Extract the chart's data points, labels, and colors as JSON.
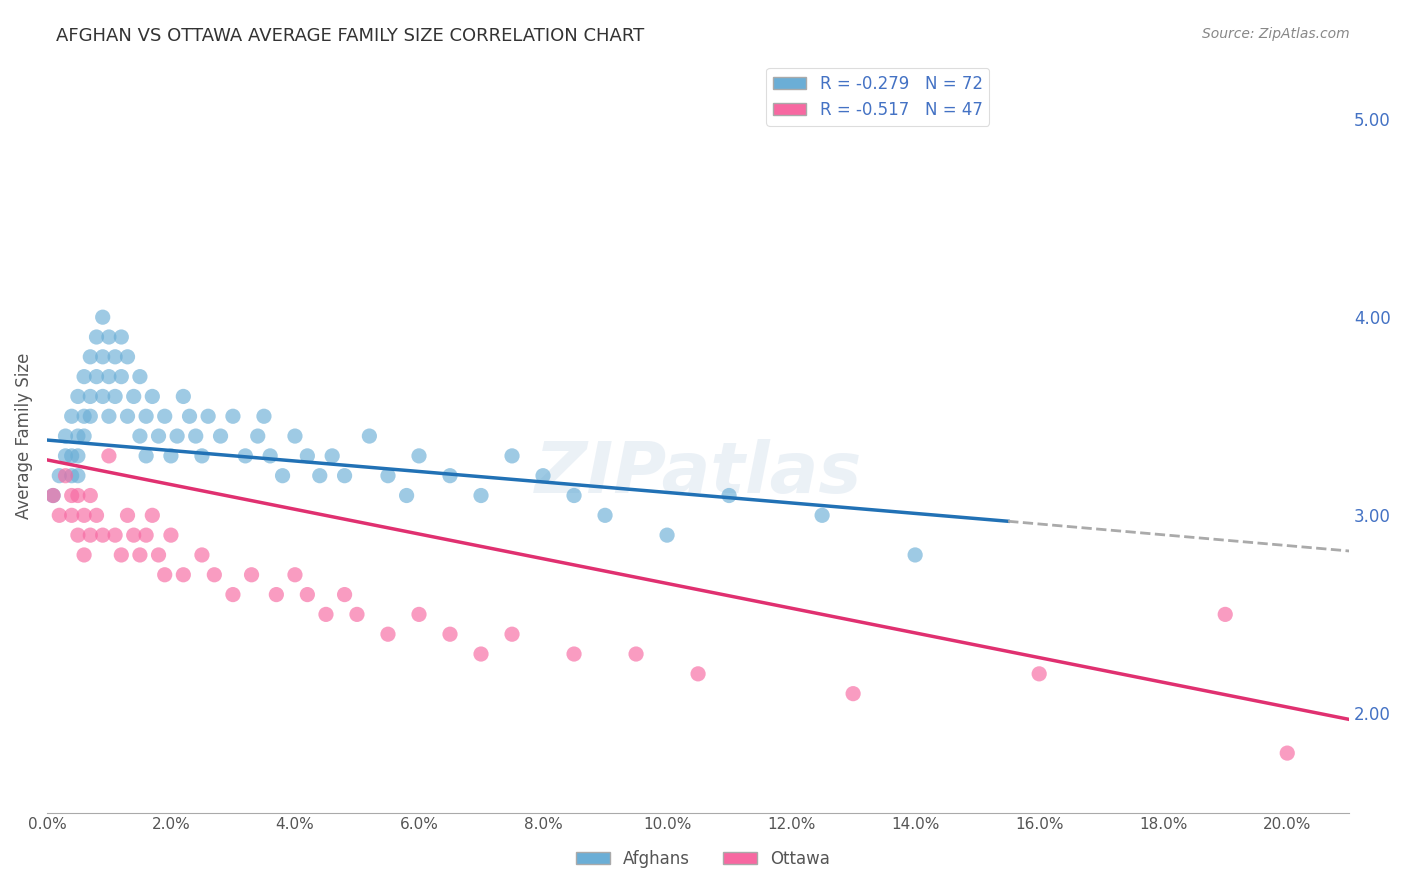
{
  "title": "AFGHAN VS OTTAWA AVERAGE FAMILY SIZE CORRELATION CHART",
  "source": "Source: ZipAtlas.com",
  "ylabel": "Average Family Size",
  "right_yticks": [
    2.0,
    3.0,
    4.0,
    5.0
  ],
  "watermark": "ZIPatlas",
  "legend_entries": [
    {
      "label": "R = -0.279   N = 72",
      "color": "#a8c4e0"
    },
    {
      "label": "R = -0.517   N = 47",
      "color": "#f4a8b8"
    }
  ],
  "afghans_color": "#6baed6",
  "ottawa_color": "#f768a1",
  "afghans_alpha": 0.65,
  "ottawa_alpha": 0.65,
  "blue_line_color": "#2171b5",
  "pink_line_color": "#e03070",
  "dashed_line_color": "#aaaaaa",
  "background_color": "#ffffff",
  "afghans_x": [
    0.001,
    0.002,
    0.003,
    0.003,
    0.004,
    0.004,
    0.004,
    0.005,
    0.005,
    0.005,
    0.005,
    0.006,
    0.006,
    0.006,
    0.007,
    0.007,
    0.007,
    0.008,
    0.008,
    0.009,
    0.009,
    0.009,
    0.01,
    0.01,
    0.01,
    0.011,
    0.011,
    0.012,
    0.012,
    0.013,
    0.013,
    0.014,
    0.015,
    0.015,
    0.016,
    0.016,
    0.017,
    0.018,
    0.019,
    0.02,
    0.021,
    0.022,
    0.023,
    0.024,
    0.025,
    0.026,
    0.028,
    0.03,
    0.032,
    0.034,
    0.035,
    0.036,
    0.038,
    0.04,
    0.042,
    0.044,
    0.046,
    0.048,
    0.052,
    0.055,
    0.058,
    0.06,
    0.065,
    0.07,
    0.075,
    0.08,
    0.085,
    0.09,
    0.1,
    0.11,
    0.125,
    0.14
  ],
  "afghans_y": [
    3.1,
    3.2,
    3.4,
    3.3,
    3.5,
    3.3,
    3.2,
    3.6,
    3.4,
    3.3,
    3.2,
    3.7,
    3.5,
    3.4,
    3.8,
    3.6,
    3.5,
    3.9,
    3.7,
    4.0,
    3.8,
    3.6,
    3.9,
    3.7,
    3.5,
    3.8,
    3.6,
    3.9,
    3.7,
    3.8,
    3.5,
    3.6,
    3.4,
    3.7,
    3.5,
    3.3,
    3.6,
    3.4,
    3.5,
    3.3,
    3.4,
    3.6,
    3.5,
    3.4,
    3.3,
    3.5,
    3.4,
    3.5,
    3.3,
    3.4,
    3.5,
    3.3,
    3.2,
    3.4,
    3.3,
    3.2,
    3.3,
    3.2,
    3.4,
    3.2,
    3.1,
    3.3,
    3.2,
    3.1,
    3.3,
    3.2,
    3.1,
    3.0,
    2.9,
    3.1,
    3.0,
    2.8
  ],
  "ottawa_x": [
    0.001,
    0.002,
    0.003,
    0.004,
    0.004,
    0.005,
    0.005,
    0.006,
    0.006,
    0.007,
    0.007,
    0.008,
    0.009,
    0.01,
    0.011,
    0.012,
    0.013,
    0.014,
    0.015,
    0.016,
    0.017,
    0.018,
    0.019,
    0.02,
    0.022,
    0.025,
    0.027,
    0.03,
    0.033,
    0.037,
    0.04,
    0.042,
    0.045,
    0.048,
    0.05,
    0.055,
    0.06,
    0.065,
    0.07,
    0.075,
    0.085,
    0.095,
    0.105,
    0.13,
    0.16,
    0.19,
    0.2
  ],
  "ottawa_y": [
    3.1,
    3.0,
    3.2,
    3.1,
    3.0,
    3.1,
    2.9,
    3.0,
    2.8,
    3.1,
    2.9,
    3.0,
    2.9,
    3.3,
    2.9,
    2.8,
    3.0,
    2.9,
    2.8,
    2.9,
    3.0,
    2.8,
    2.7,
    2.9,
    2.7,
    2.8,
    2.7,
    2.6,
    2.7,
    2.6,
    2.7,
    2.6,
    2.5,
    2.6,
    2.5,
    2.4,
    2.5,
    2.4,
    2.3,
    2.4,
    2.3,
    2.3,
    2.2,
    2.1,
    2.2,
    2.5,
    1.8
  ],
  "xlim": [
    0.0,
    0.21
  ],
  "ylim": [
    1.5,
    5.3
  ],
  "blue_line_x": [
    0.0,
    0.155
  ],
  "blue_line_y": [
    3.38,
    2.97
  ],
  "dashed_line_x": [
    0.155,
    0.21
  ],
  "dashed_line_y": [
    2.97,
    2.82
  ],
  "pink_line_x": [
    0.0,
    0.21
  ],
  "pink_line_y": [
    3.28,
    1.97
  ]
}
